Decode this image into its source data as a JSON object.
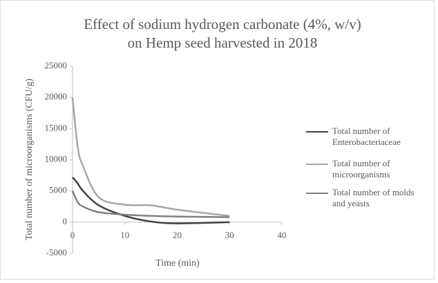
{
  "chart_data": {
    "type": "line",
    "title": [
      "Effect of sodium hydrogen carbonate (4%, w/v)",
      "on Hemp seed harvested in 2018"
    ],
    "x_label": "Time (min)",
    "y_label": "Total number of microorganisms (CFU/g)",
    "x": [
      0,
      1,
      2,
      5,
      10,
      15,
      20,
      30
    ],
    "series": [
      {
        "name": "Total number of Enterobacteriaceae",
        "color": "#404040",
        "values": [
          7200,
          6200,
          5000,
          2700,
          1000,
          100,
          -200,
          0
        ]
      },
      {
        "name": "Total number of microorganisms",
        "color": "#a6a6a6",
        "values": [
          20000,
          12000,
          9000,
          4000,
          2800,
          2700,
          2000,
          1000
        ]
      },
      {
        "name": "Total number of molds and yeasts",
        "color": "#7f7f7f",
        "values": [
          5000,
          3200,
          2500,
          1600,
          1200,
          1000,
          900,
          800
        ]
      }
    ],
    "xlim": [
      0,
      40
    ],
    "xticks": [
      0,
      10,
      20,
      30,
      40
    ],
    "ylim": [
      -5000,
      25000
    ],
    "yticks": [
      -5000,
      0,
      5000,
      10000,
      15000,
      20000,
      25000
    ],
    "grid": false,
    "legend": "right"
  }
}
